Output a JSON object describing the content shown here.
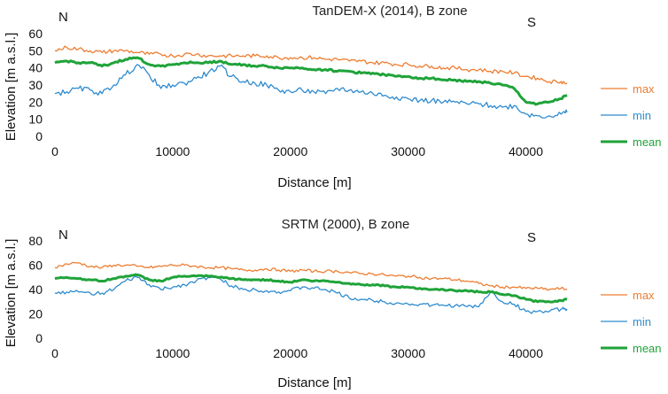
{
  "chart_data": [
    {
      "type": "line",
      "title": "TanDEM-X (2014), B zone",
      "xlabel": "Distance [m]",
      "ylabel": "Elevation [m a.s.l.]",
      "xlim": [
        0,
        45000
      ],
      "ylim": [
        0,
        60
      ],
      "xticks": [
        0,
        10000,
        20000,
        30000,
        40000
      ],
      "yticks": [
        0,
        10,
        20,
        30,
        40,
        50,
        60
      ],
      "direction_left": "N",
      "direction_right": "S",
      "x": [
        0,
        1000,
        2000,
        3000,
        4000,
        5000,
        6000,
        7000,
        8000,
        9000,
        10000,
        11000,
        12000,
        13000,
        14000,
        15000,
        16000,
        17000,
        18000,
        19000,
        20000,
        21000,
        22000,
        23000,
        24000,
        25000,
        26000,
        27000,
        28000,
        29000,
        30000,
        31000,
        32000,
        33000,
        34000,
        35000,
        36000,
        37000,
        38000,
        39000,
        40000,
        41000,
        42000,
        43000,
        43500
      ],
      "series": [
        {
          "name": "max",
          "color": "#ed7d31",
          "width": 1.3,
          "values": [
            50,
            52,
            51,
            50,
            49,
            50,
            50,
            49,
            48,
            48,
            47,
            48,
            48,
            47,
            47,
            47,
            47,
            47,
            47,
            46,
            46,
            46,
            46,
            45,
            45,
            44,
            44,
            43,
            43,
            42,
            42,
            41,
            41,
            40,
            40,
            39,
            39,
            38,
            38,
            37,
            35,
            34,
            32,
            32,
            31
          ]
        },
        {
          "name": "min",
          "color": "#2e8bcf",
          "width": 1.3,
          "values": [
            25,
            26,
            28,
            27,
            25,
            30,
            36,
            42,
            36,
            28,
            30,
            31,
            34,
            37,
            41,
            35,
            32,
            31,
            30,
            27,
            26,
            27,
            26,
            25,
            28,
            27,
            26,
            25,
            24,
            23,
            22,
            21,
            21,
            20,
            20,
            19,
            19,
            18,
            17,
            18,
            13,
            12,
            12,
            13,
            14
          ]
        },
        {
          "name": "mean",
          "color": "#1fa339",
          "width": 3,
          "values": [
            43,
            44,
            43,
            43,
            41,
            43,
            45,
            46,
            42,
            41,
            42,
            43,
            43,
            43,
            44,
            42,
            42,
            41,
            41,
            40,
            40,
            40,
            39,
            39,
            38,
            38,
            37,
            37,
            36,
            35,
            35,
            34,
            34,
            33,
            33,
            32,
            32,
            31,
            30,
            28,
            20,
            19,
            20,
            22,
            24
          ]
        }
      ]
    },
    {
      "type": "line",
      "title": "SRTM (2000), B zone",
      "xlabel": "Distance [m]",
      "ylabel": "Elevation [m a.s.l.]",
      "xlim": [
        0,
        45000
      ],
      "ylim": [
        0,
        80
      ],
      "xticks": [
        0,
        10000,
        20000,
        30000,
        40000
      ],
      "yticks": [
        0,
        20,
        40,
        60,
        80
      ],
      "direction_left": "N",
      "direction_right": "S",
      "x": [
        0,
        1000,
        2000,
        3000,
        4000,
        5000,
        6000,
        7000,
        8000,
        9000,
        10000,
        11000,
        12000,
        13000,
        14000,
        15000,
        16000,
        17000,
        18000,
        19000,
        20000,
        21000,
        22000,
        23000,
        24000,
        25000,
        26000,
        27000,
        28000,
        29000,
        30000,
        31000,
        32000,
        33000,
        34000,
        35000,
        36000,
        37000,
        38000,
        39000,
        40000,
        41000,
        42000,
        43000,
        43500
      ],
      "series": [
        {
          "name": "max",
          "color": "#ed7d31",
          "width": 1.3,
          "values": [
            58,
            61,
            62,
            59,
            58,
            60,
            60,
            59,
            58,
            59,
            60,
            60,
            59,
            58,
            58,
            57,
            56,
            56,
            57,
            56,
            55,
            56,
            55,
            55,
            55,
            54,
            53,
            53,
            52,
            51,
            51,
            50,
            49,
            49,
            48,
            47,
            45,
            43,
            42,
            42,
            41,
            41,
            40,
            41,
            40
          ]
        },
        {
          "name": "min",
          "color": "#2e8bcf",
          "width": 1.3,
          "values": [
            37,
            38,
            38,
            37,
            37,
            40,
            47,
            50,
            44,
            40,
            42,
            44,
            47,
            50,
            49,
            43,
            40,
            40,
            39,
            38,
            39,
            42,
            41,
            40,
            37,
            33,
            32,
            31,
            30,
            29,
            28,
            28,
            27,
            27,
            27,
            26,
            26,
            38,
            30,
            28,
            22,
            22,
            22,
            24,
            24
          ]
        },
        {
          "name": "mean",
          "color": "#1fa339",
          "width": 3,
          "values": [
            49,
            50,
            49,
            48,
            47,
            49,
            51,
            52,
            48,
            47,
            50,
            51,
            51,
            51,
            50,
            49,
            48,
            48,
            48,
            47,
            46,
            48,
            47,
            47,
            46,
            45,
            44,
            44,
            43,
            42,
            42,
            41,
            40,
            40,
            39,
            39,
            38,
            38,
            36,
            35,
            32,
            30,
            30,
            31,
            32
          ]
        }
      ]
    }
  ]
}
